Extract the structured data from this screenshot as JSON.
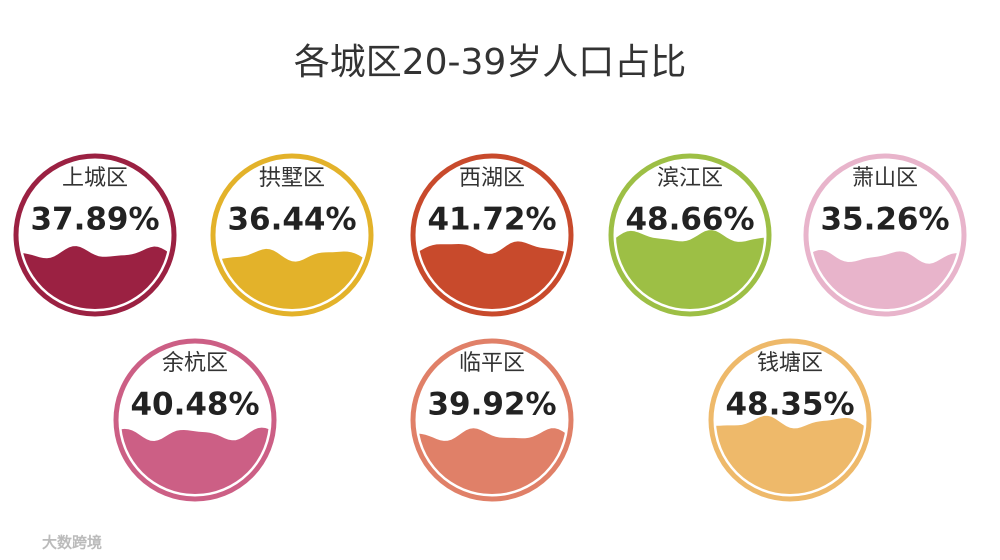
{
  "chart_data": {
    "type": "liquid-gauge",
    "title": "各城区20-39岁人口占比",
    "categories": [
      "上城区",
      "拱墅区",
      "西湖区",
      "滨江区",
      "萧山区",
      "余杭区",
      "临平区",
      "钱塘区"
    ],
    "values": [
      37.89,
      36.44,
      41.72,
      48.66,
      35.26,
      40.48,
      39.92,
      48.35
    ],
    "value_labels": [
      "37.89%",
      "36.44%",
      "41.72%",
      "48.66%",
      "35.26%",
      "40.48%",
      "39.92%",
      "48.35%"
    ],
    "colors": [
      "#9b2142",
      "#e3b22a",
      "#c84a2c",
      "#9dbf45",
      "#e8b4cb",
      "#cc5f85",
      "#e08068",
      "#eeb96a"
    ],
    "ylim": [
      0,
      100
    ],
    "watermark": "大数跨境"
  }
}
